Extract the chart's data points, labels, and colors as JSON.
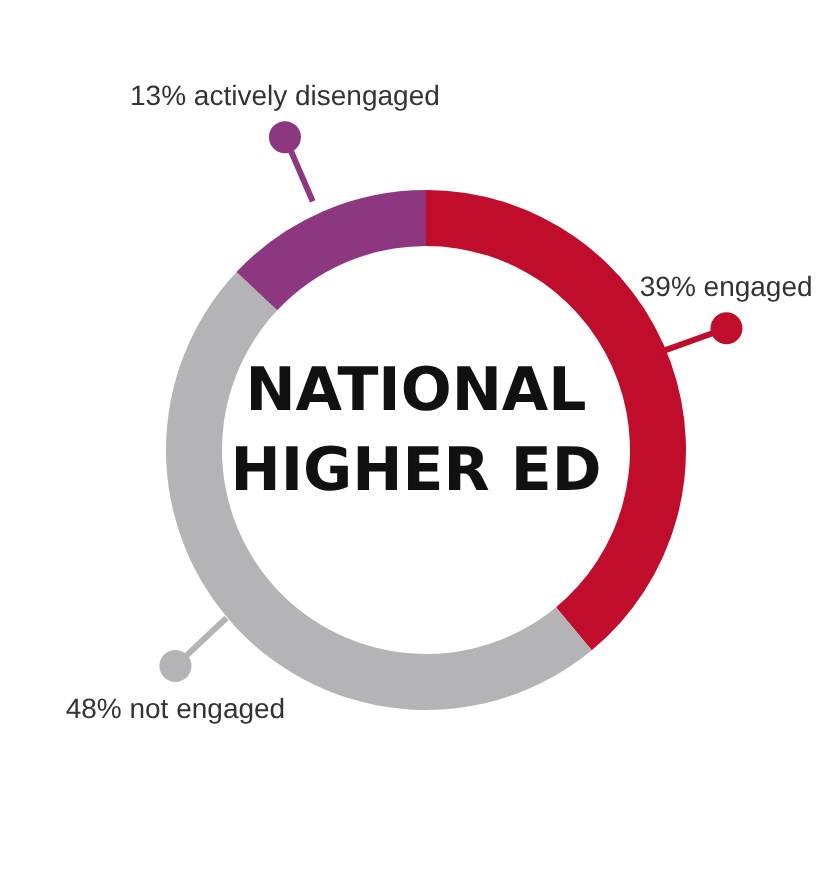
{
  "chart_data": {
    "type": "donut",
    "title": "NATIONAL HIGHER ED",
    "categories": [
      "39% engaged",
      "48% not engaged",
      "13% actively disengaged"
    ],
    "values": [
      39,
      48,
      13
    ],
    "colors": [
      "#c00d2b",
      "#b4b4b7",
      "#8d3780"
    ]
  }
}
